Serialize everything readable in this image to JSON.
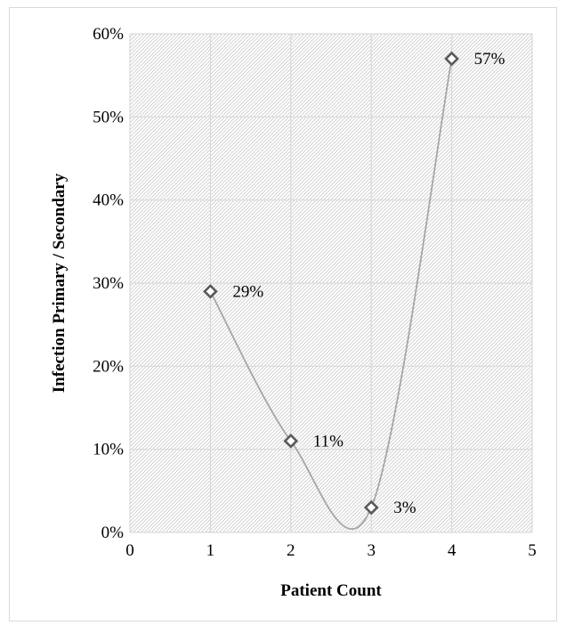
{
  "chart_data": {
    "type": "scatter",
    "smooth_line": true,
    "title": "",
    "xlabel": "Patient Count",
    "ylabel": "Infection Primary / Secondary",
    "xlim": [
      0,
      5
    ],
    "ylim": [
      0,
      0.6
    ],
    "x_ticks": [
      0,
      1,
      2,
      3,
      4,
      5
    ],
    "x_tick_labels": [
      "0",
      "1",
      "2",
      "3",
      "4",
      "5"
    ],
    "y_ticks": [
      0,
      0.1,
      0.2,
      0.3,
      0.4,
      0.5,
      0.6
    ],
    "y_tick_labels": [
      "0%",
      "10%",
      "20%",
      "30%",
      "40%",
      "50%",
      "60%"
    ],
    "grid": true,
    "legend": "none",
    "plot_background": "diagonal-hatch",
    "marker": "diamond",
    "series": [
      {
        "x": [
          1,
          2,
          3,
          4
        ],
        "values": [
          0.29,
          0.11,
          0.03,
          0.57
        ],
        "data_labels": [
          "29%",
          "11%",
          "3%",
          "57%"
        ],
        "color": "#a6a6a6",
        "marker_edge_color": "#595959"
      }
    ]
  }
}
